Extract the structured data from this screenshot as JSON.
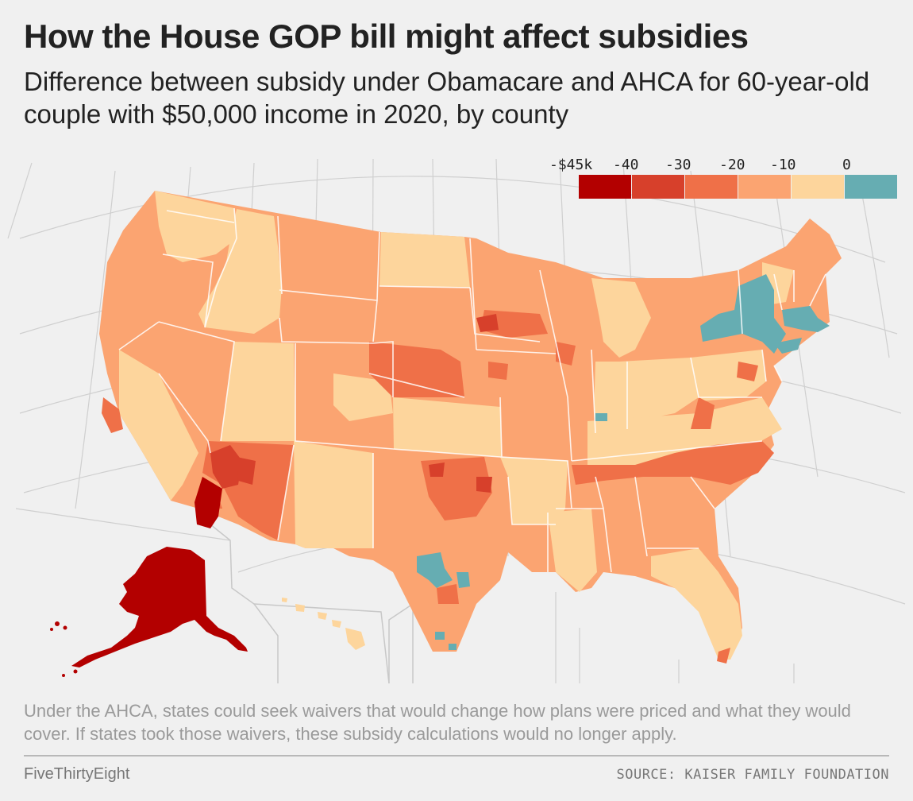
{
  "title": "How the House GOP bill might affect subsidies",
  "subtitle": "Difference between subsidy under Obamacare and AHCA for 60-year-old couple with $50,000 income in 2020, by county",
  "legend": {
    "labels": [
      "-$45k",
      "-40",
      "-30",
      "-20",
      "-10",
      "0"
    ],
    "bins": [
      {
        "range": "-$45k to -$40k",
        "color": "#b30000"
      },
      {
        "range": "-$40k to -$30k",
        "color": "#d7402b"
      },
      {
        "range": "-$30k to -$20k",
        "color": "#ef7048"
      },
      {
        "range": "-$20k to -$10k",
        "color": "#fba471"
      },
      {
        "range": "-$10k to $0",
        "color": "#fdd59c"
      },
      {
        "range": "gain (above $0)",
        "color": "#66adb2"
      }
    ]
  },
  "footnote": "Under the AHCA, states could seek waivers that would change how plans were priced and what they would cover. If states took those waivers, these subsidy calculations would no longer apply.",
  "brand": "FiveThirtyEight",
  "source": "SOURCE: KAISER FAMILY FOUNDATION"
}
